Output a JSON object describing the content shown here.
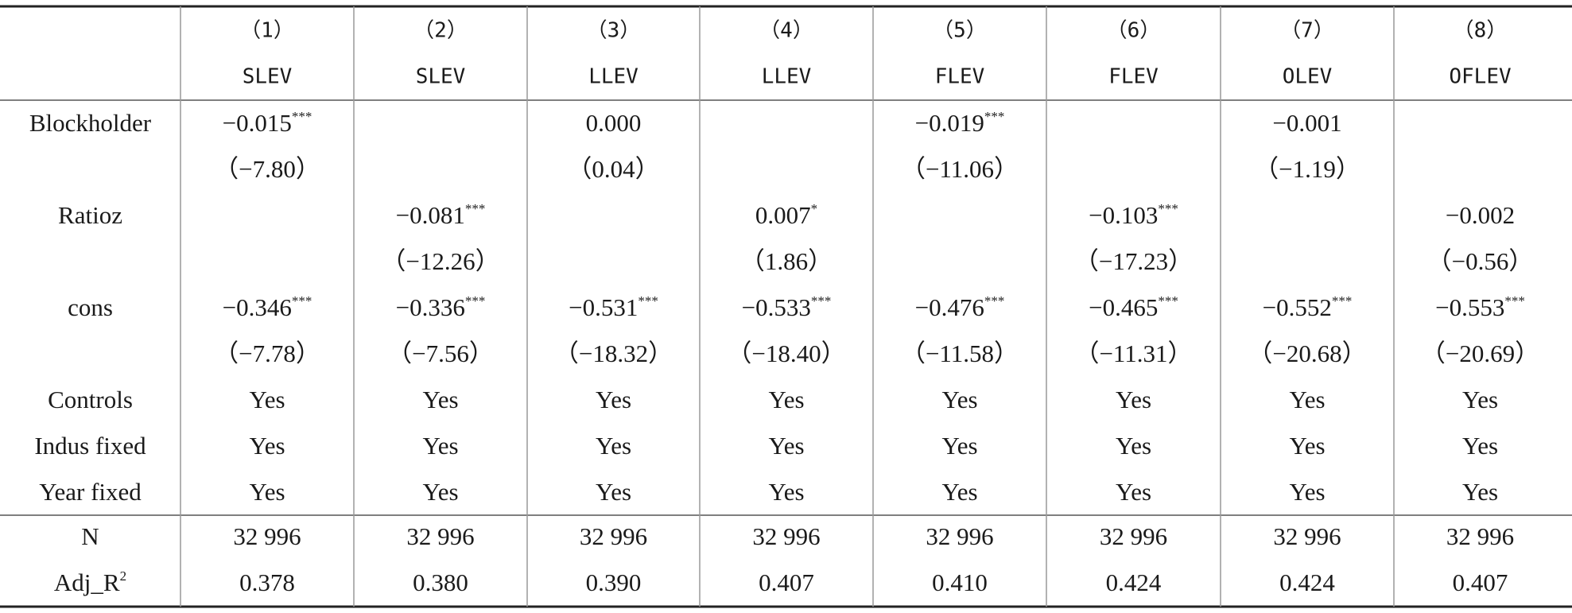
{
  "table": {
    "header": {
      "numbers": [
        "（1）",
        "（2）",
        "（3）",
        "（4）",
        "（5）",
        "（6）",
        "（7）",
        "（8）"
      ],
      "names": [
        "SLEV",
        "SLEV",
        "LLEV",
        "LLEV",
        "FLEV",
        "FLEV",
        "OLEV",
        "OFLEV"
      ]
    },
    "rows": [
      {
        "label": "Blockholder",
        "cells": [
          {
            "text": "−0.015",
            "sup": "***"
          },
          null,
          "0.000",
          null,
          {
            "text": "−0.019",
            "sup": "***"
          },
          null,
          "−0.001",
          null
        ]
      },
      {
        "label": null,
        "cells": [
          "（−7.80）",
          null,
          "（0.04）",
          null,
          "（−11.06）",
          null,
          "（−1.19）",
          null
        ]
      },
      {
        "label": "Ratioz",
        "cells": [
          null,
          {
            "text": "−0.081",
            "sup": "***"
          },
          null,
          {
            "text": "0.007",
            "sup": "*"
          },
          null,
          {
            "text": "−0.103",
            "sup": "***"
          },
          null,
          "−0.002"
        ]
      },
      {
        "label": null,
        "cells": [
          null,
          "（−12.26）",
          null,
          "（1.86）",
          null,
          "（−17.23）",
          null,
          "（−0.56）"
        ]
      },
      {
        "label": "cons",
        "cells": [
          {
            "text": "−0.346",
            "sup": "***"
          },
          {
            "text": "−0.336",
            "sup": "***"
          },
          {
            "text": "−0.531",
            "sup": "***"
          },
          {
            "text": "−0.533",
            "sup": "***"
          },
          {
            "text": "−0.476",
            "sup": "***"
          },
          {
            "text": "−0.465",
            "sup": "***"
          },
          {
            "text": "−0.552",
            "sup": "***"
          },
          {
            "text": "−0.553",
            "sup": "***"
          }
        ]
      },
      {
        "label": null,
        "cells": [
          "（−7.78）",
          "（−7.56）",
          "（−18.32）",
          "（−18.40）",
          "（−11.58）",
          "（−11.31）",
          "（−20.68）",
          "（−20.69）"
        ]
      },
      {
        "label": "Controls",
        "cells": [
          "Yes",
          "Yes",
          "Yes",
          "Yes",
          "Yes",
          "Yes",
          "Yes",
          "Yes"
        ]
      },
      {
        "label": "Indus fixed",
        "cells": [
          "Yes",
          "Yes",
          "Yes",
          "Yes",
          "Yes",
          "Yes",
          "Yes",
          "Yes"
        ]
      },
      {
        "label": "Year fixed",
        "cells": [
          "Yes",
          "Yes",
          "Yes",
          "Yes",
          "Yes",
          "Yes",
          "Yes",
          "Yes"
        ]
      }
    ],
    "footer": [
      {
        "label": "N",
        "cells": [
          "32 996",
          "32 996",
          "32 996",
          "32 996",
          "32 996",
          "32 996",
          "32 996",
          "32 996"
        ]
      },
      {
        "label": {
          "text": "Adj_R",
          "sup": "2"
        },
        "cells": [
          "0.378",
          "0.380",
          "0.390",
          "0.407",
          "0.410",
          "0.424",
          "0.424",
          "0.407"
        ]
      }
    ]
  }
}
